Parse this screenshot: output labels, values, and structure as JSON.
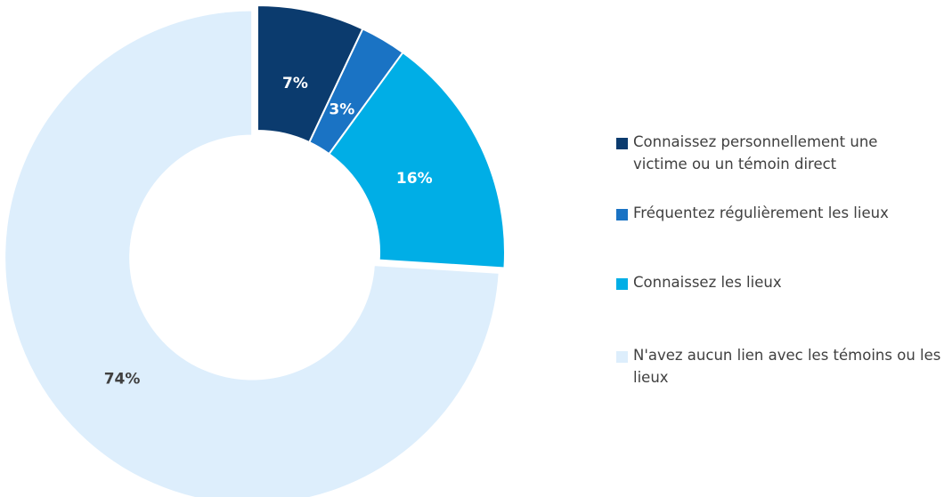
{
  "chart_data": {
    "type": "pie",
    "variant": "donut",
    "categories": [
      "Connaissez personnellement une victime ou un témoin direct",
      "Fréquentez régulièrement les lieux",
      "Connaissez les lieux",
      "N'avez aucun lien avec les témoins ou les lieux"
    ],
    "values": [
      7,
      3,
      16,
      74
    ],
    "data_labels": [
      "7%",
      "3%",
      "16%",
      "74%"
    ],
    "colors": [
      "#0B3B6E",
      "#1A73C4",
      "#00AEE6",
      "#DDEEFC"
    ],
    "label_colors": [
      "#FFFFFF",
      "#FFFFFF",
      "#FFFFFF",
      "#404040"
    ],
    "legend_position": "right",
    "legend": [
      "Connaissez personnellement une victime ou un témoin direct",
      "Fréquentez régulièrement les lieux",
      "Connaissez les lieux",
      "N'avez aucun lien avec les témoins ou les lieux"
    ],
    "start_angle_deg": 0,
    "direction": "clockwise"
  }
}
